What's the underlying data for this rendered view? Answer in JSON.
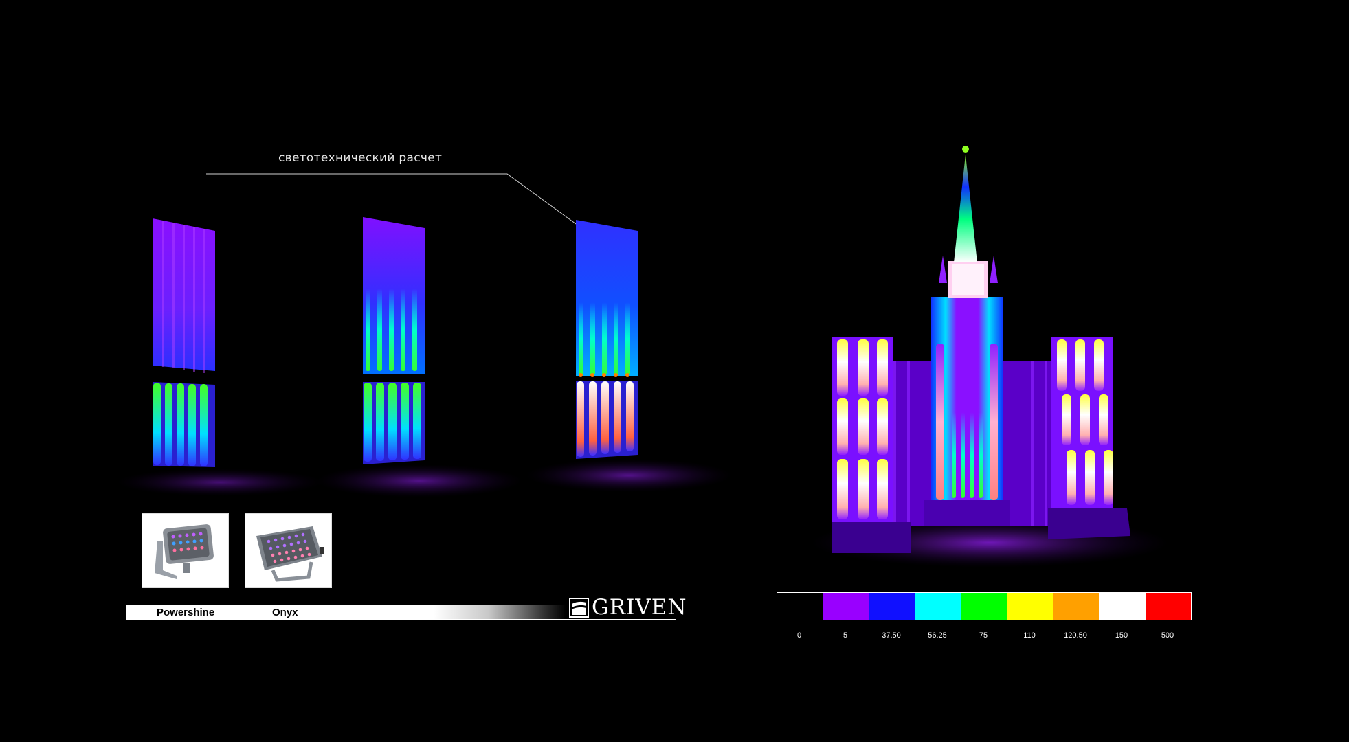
{
  "caption": "светотехнический расчет",
  "products": [
    "Powershine",
    "Onyx"
  ],
  "brand": "GRIVEN",
  "legend": {
    "colors": [
      "#000000",
      "#9900ff",
      "#1010ff",
      "#00ffff",
      "#00ff00",
      "#ffff00",
      "#ffa000",
      "#ffffff",
      "#ff0000"
    ],
    "labels": [
      "0",
      "5",
      "37.50",
      "56.25",
      "75",
      "110",
      "120.50",
      "150",
      "500"
    ]
  },
  "icons": {
    "logo": "griven-logo-icon",
    "fixture1": "floodlight-powershine-icon",
    "fixture2": "floodlight-onyx-icon"
  }
}
